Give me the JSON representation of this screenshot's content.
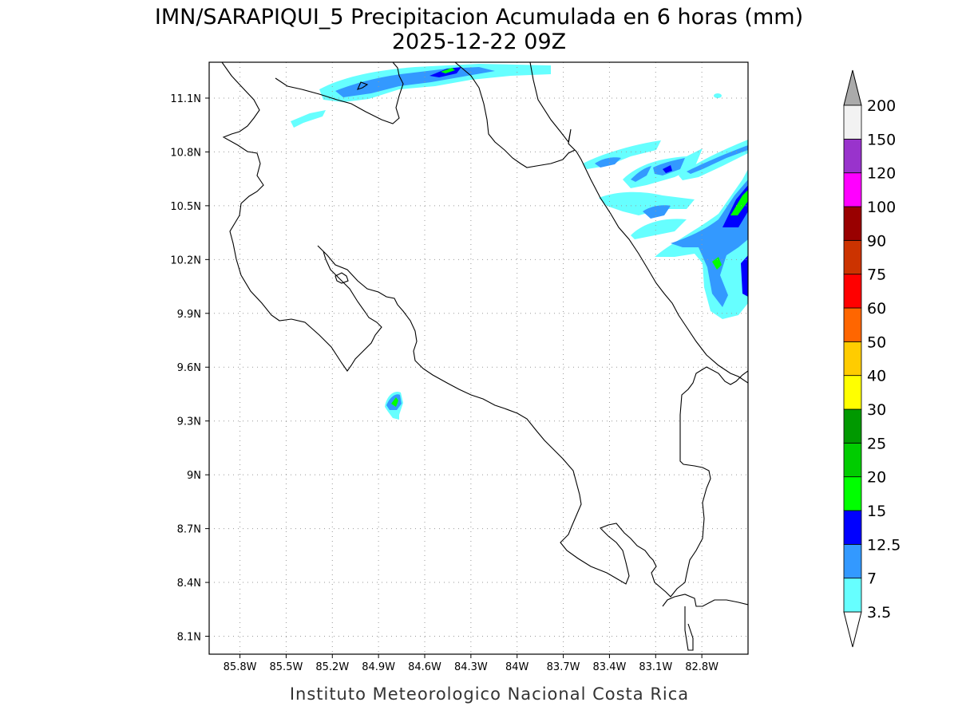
{
  "title": {
    "line1": "IMN/SARAPIQUI_5 Precipitacion Acumulada en 6 horas (mm)",
    "line2": "2025-12-22 09Z"
  },
  "credit": "Instituto Meteorologico Nacional Costa Rica",
  "map": {
    "lon_range": [
      -86.0,
      -82.5
    ],
    "lat_range": [
      8.0,
      11.3
    ],
    "lon_ticks": [
      {
        "value": -85.8,
        "label": "85.8W"
      },
      {
        "value": -85.5,
        "label": "85.5W"
      },
      {
        "value": -85.2,
        "label": "85.2W"
      },
      {
        "value": -84.9,
        "label": "84.9W"
      },
      {
        "value": -84.6,
        "label": "84.6W"
      },
      {
        "value": -84.3,
        "label": "84.3W"
      },
      {
        "value": -84.0,
        "label": "84W"
      },
      {
        "value": -83.7,
        "label": "83.7W"
      },
      {
        "value": -83.4,
        "label": "83.4W"
      },
      {
        "value": -83.1,
        "label": "83.1W"
      },
      {
        "value": -82.8,
        "label": "82.8W"
      }
    ],
    "lat_ticks": [
      {
        "value": 11.1,
        "label": "11.1N"
      },
      {
        "value": 10.8,
        "label": "10.8N"
      },
      {
        "value": 10.5,
        "label": "10.5N"
      },
      {
        "value": 10.2,
        "label": "10.2N"
      },
      {
        "value": 9.9,
        "label": "9.9N"
      },
      {
        "value": 9.6,
        "label": "9.6N"
      },
      {
        "value": 9.3,
        "label": "9.3N"
      },
      {
        "value": 9.0,
        "label": "9N"
      },
      {
        "value": 8.7,
        "label": "8.7N"
      },
      {
        "value": 8.4,
        "label": "8.4N"
      },
      {
        "value": 8.1,
        "label": "8.1N"
      }
    ],
    "grid": true
  },
  "colorbar": {
    "levels": [
      {
        "label": "3.5",
        "color": "#66ffff"
      },
      {
        "label": "7",
        "color": "#3399ff"
      },
      {
        "label": "12.5",
        "color": "#0000ff"
      },
      {
        "label": "15",
        "color": "#00ff00"
      },
      {
        "label": "20",
        "color": "#00cc00"
      },
      {
        "label": "25",
        "color": "#009900"
      },
      {
        "label": "30",
        "color": "#ffff00"
      },
      {
        "label": "40",
        "color": "#ffcc00"
      },
      {
        "label": "50",
        "color": "#ff6600"
      },
      {
        "label": "60",
        "color": "#ff0000"
      },
      {
        "label": "75",
        "color": "#cc3300"
      },
      {
        "label": "90",
        "color": "#990000"
      },
      {
        "label": "100",
        "color": "#ff00ff"
      },
      {
        "label": "120",
        "color": "#9933cc"
      },
      {
        "label": "150",
        "color": "#f2f2f2"
      },
      {
        "label": "200",
        "color": "#aaaaaa"
      }
    ],
    "below_color": "#ffffff",
    "above_color": "#aaaaaa"
  }
}
